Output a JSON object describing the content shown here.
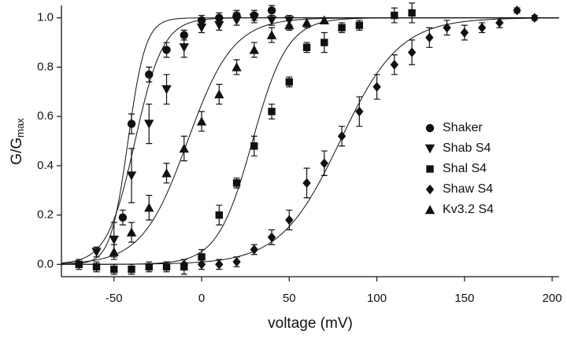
{
  "chart_data": {
    "type": "scatter",
    "x_label": "voltage  (mV)",
    "y_label": "G/G",
    "y_label_sub": "max",
    "xlim": [
      -80,
      204
    ],
    "ylim": [
      -0.05,
      1.05
    ],
    "xticks": [
      -50,
      0,
      50,
      100,
      150,
      200
    ],
    "yticks": [
      {
        "value": 0,
        "label": "0.0"
      },
      0.2,
      0.4,
      0.6,
      0.8,
      {
        "value": 1,
        "label": "1.0"
      }
    ],
    "series": [
      {
        "name": "Shaker",
        "marker": "circle",
        "color": "#111111",
        "x": [
          -45,
          -40,
          -30,
          -20,
          -10,
          0,
          10,
          20,
          30,
          40
        ],
        "values": [
          0.19,
          0.57,
          0.77,
          0.87,
          0.93,
          0.99,
          1.0,
          1.01,
          1.01,
          1.03
        ],
        "errors": [
          0.03,
          0.04,
          0.03,
          0.03,
          0.02,
          0.02,
          0.02,
          0.02,
          0.02,
          0.02
        ],
        "fit": {
          "v_half": -42,
          "slope": 5
        }
      },
      {
        "name": "Shab S4",
        "marker": "triangle-down",
        "color": "#111111",
        "x": [
          -60,
          -50,
          -40,
          -30,
          -20,
          -10,
          0,
          10,
          20,
          30,
          40,
          50
        ],
        "values": [
          0.05,
          0.1,
          0.36,
          0.57,
          0.71,
          0.88,
          0.96,
          0.97,
          0.99,
          1.0,
          0.99,
          0.99
        ],
        "errors": [
          0.02,
          0.07,
          0.11,
          0.08,
          0.06,
          0.04,
          0.02,
          0.02,
          0.02,
          0.02,
          0.02,
          0.02
        ],
        "fit": {
          "v_half": -38,
          "slope": 8
        }
      },
      {
        "name": "Shal S4",
        "marker": "square",
        "color": "#111111",
        "x": [
          -70,
          -60,
          -50,
          -40,
          -30,
          -20,
          -10,
          0,
          10,
          20,
          30,
          40,
          50,
          60,
          70,
          80,
          90,
          110,
          120
        ],
        "values": [
          0.0,
          -0.01,
          -0.02,
          -0.02,
          -0.01,
          -0.01,
          -0.01,
          0.03,
          0.2,
          0.33,
          0.48,
          0.62,
          0.74,
          0.88,
          0.9,
          0.96,
          0.97,
          1.01,
          1.02
        ],
        "errors": [
          0.02,
          0.02,
          0.02,
          0.02,
          0.02,
          0.02,
          0.03,
          0.03,
          0.04,
          0.02,
          0.04,
          0.03,
          0.02,
          0.02,
          0.04,
          0.02,
          0.02,
          0.03,
          0.04
        ],
        "fit": {
          "v_half": 29,
          "slope": 10
        }
      },
      {
        "name": "Shaw S4",
        "marker": "diamond",
        "color": "#111111",
        "x": [
          -10,
          0,
          10,
          20,
          30,
          40,
          50,
          60,
          70,
          80,
          90,
          100,
          110,
          120,
          130,
          140,
          150,
          160,
          170,
          180,
          190
        ],
        "values": [
          0.0,
          0.0,
          0.0,
          0.01,
          0.06,
          0.11,
          0.18,
          0.33,
          0.41,
          0.52,
          0.62,
          0.72,
          0.81,
          0.86,
          0.92,
          0.96,
          0.94,
          0.96,
          0.98,
          1.03,
          1.0
        ],
        "errors": [
          0.02,
          0.02,
          0.02,
          0.02,
          0.02,
          0.03,
          0.04,
          0.06,
          0.05,
          0.04,
          0.06,
          0.05,
          0.04,
          0.05,
          0.04,
          0.03,
          0.03,
          0.02,
          0.02,
          0.01,
          0.01
        ],
        "fit": {
          "v_half": 79,
          "slope": 17
        }
      },
      {
        "name": "Kv3.2 S4",
        "marker": "triangle-up",
        "color": "#111111",
        "x": [
          -50,
          -40,
          -30,
          -20,
          -10,
          0,
          10,
          20,
          30,
          40,
          50,
          60,
          70
        ],
        "values": [
          0.05,
          0.13,
          0.23,
          0.37,
          0.47,
          0.58,
          0.69,
          0.8,
          0.87,
          0.93,
          0.97,
          0.98,
          0.99
        ],
        "errors": [
          0.03,
          0.04,
          0.05,
          0.04,
          0.05,
          0.04,
          0.04,
          0.03,
          0.03,
          0.03,
          0.02,
          0.02,
          0.01
        ],
        "fit": {
          "v_half": -8,
          "slope": 13
        }
      }
    ],
    "legend": "right"
  }
}
